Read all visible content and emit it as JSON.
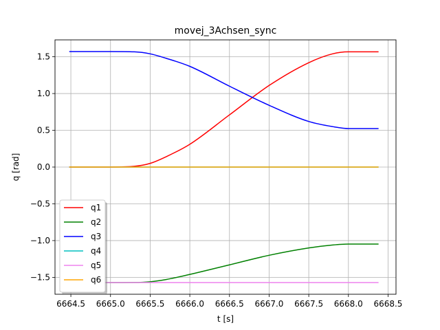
{
  "chart_data": {
    "type": "line",
    "title": "movej_3Achsen_sync",
    "xlabel": "t [s]",
    "ylabel": "q [rad]",
    "xlim": [
      6664.3,
      6668.6
    ],
    "ylim": [
      -1.73,
      1.73
    ],
    "xticks": [
      6664.5,
      6665.0,
      6665.5,
      6666.0,
      6666.5,
      6667.0,
      6667.5,
      6668.0,
      6668.5
    ],
    "xtick_labels": [
      "6664.5",
      "6665.0",
      "6665.5",
      "6666.0",
      "6666.5",
      "6667.0",
      "6667.5",
      "6668.0",
      "6668.5"
    ],
    "yticks": [
      -1.5,
      -1.0,
      -0.5,
      0.0,
      0.5,
      1.0,
      1.5
    ],
    "ytick_labels": [
      "−1.5",
      "−1.0",
      "−0.5",
      "0.0",
      "0.5",
      "1.0",
      "1.5"
    ],
    "grid": true,
    "legend_position": "lower-left",
    "series": [
      {
        "name": "q1",
        "color": "#ff0000",
        "x": [
          6664.48,
          6665.0,
          6665.3,
          6665.5,
          6665.7,
          6666.0,
          6666.5,
          6667.0,
          6667.5,
          6667.8,
          6668.0,
          6668.38
        ],
        "y": [
          0.0,
          0.0,
          0.01,
          0.05,
          0.14,
          0.31,
          0.71,
          1.11,
          1.42,
          1.54,
          1.567,
          1.567
        ]
      },
      {
        "name": "q2",
        "color": "#008000",
        "x": [
          6664.48,
          6665.0,
          6665.3,
          6665.5,
          6665.7,
          6666.0,
          6666.5,
          6667.0,
          6667.5,
          6667.8,
          6668.0,
          6668.38
        ],
        "y": [
          -1.571,
          -1.571,
          -1.57,
          -1.56,
          -1.53,
          -1.46,
          -1.33,
          -1.2,
          -1.1,
          -1.06,
          -1.047,
          -1.047
        ]
      },
      {
        "name": "q3",
        "color": "#0000ff",
        "x": [
          6664.48,
          6665.0,
          6665.3,
          6665.5,
          6665.7,
          6666.0,
          6666.5,
          6667.0,
          6667.5,
          6667.8,
          6668.0,
          6668.38
        ],
        "y": [
          1.571,
          1.571,
          1.567,
          1.54,
          1.48,
          1.37,
          1.1,
          0.84,
          0.62,
          0.55,
          0.524,
          0.524
        ]
      },
      {
        "name": "q4",
        "color": "#00bfbf",
        "x": [
          6664.48,
          6668.38
        ],
        "y": [
          0.0,
          0.0
        ]
      },
      {
        "name": "q5",
        "color": "#ee82ee",
        "x": [
          6664.48,
          6668.38
        ],
        "y": [
          -1.571,
          -1.571
        ]
      },
      {
        "name": "q6",
        "color": "#ffa500",
        "x": [
          6664.48,
          6668.38
        ],
        "y": [
          0.0,
          0.0
        ]
      }
    ]
  }
}
